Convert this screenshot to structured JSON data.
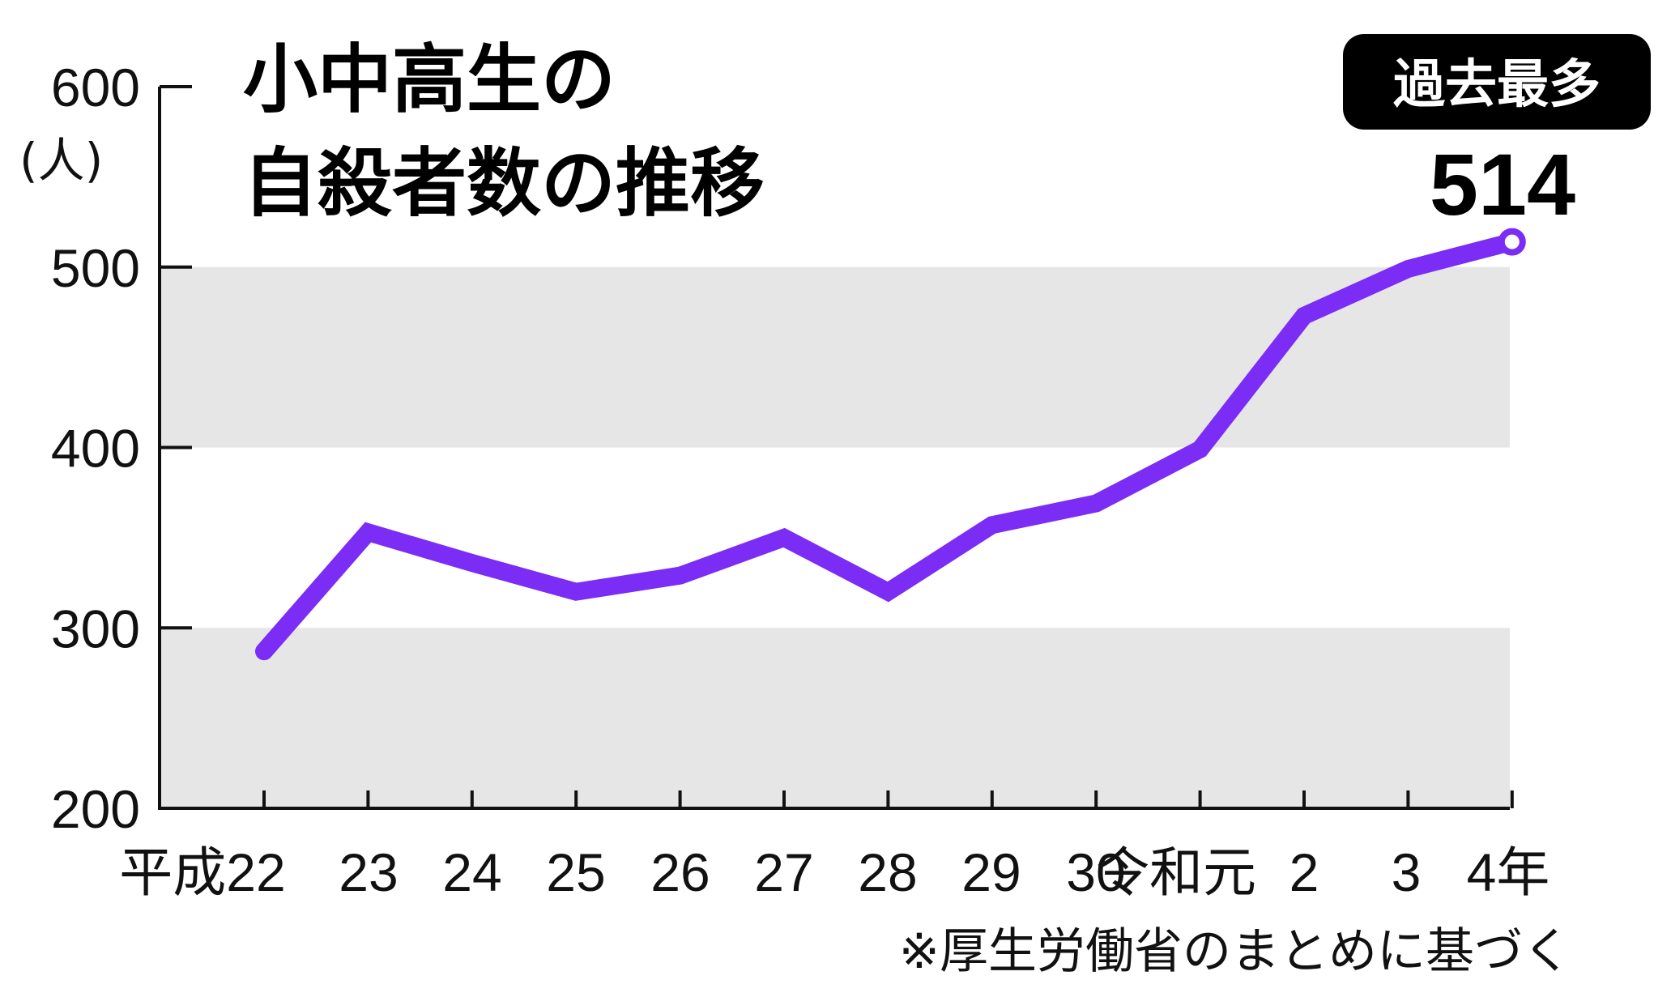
{
  "chart_data": {
    "type": "line",
    "title_lines": [
      "小中高生の",
      "自殺者数の推移"
    ],
    "ylabel": "(人)",
    "ylim": [
      200,
      600
    ],
    "yticks": [
      200,
      300,
      400,
      500,
      600
    ],
    "categories": [
      "平成22",
      "23",
      "24",
      "25",
      "26",
      "27",
      "28",
      "29",
      "30",
      "令和元",
      "2",
      "3",
      "4年"
    ],
    "values": [
      287,
      353,
      336,
      320,
      329,
      350,
      320,
      357,
      369,
      399,
      473,
      499,
      514
    ],
    "badge": "過去最多",
    "peak_label": "514",
    "note": "※厚生労働省のまとめに基づく",
    "colors": {
      "line": "#7b2cf5",
      "band": "#e6e6e6",
      "axis": "#111111",
      "badge_bg": "#000000"
    }
  }
}
